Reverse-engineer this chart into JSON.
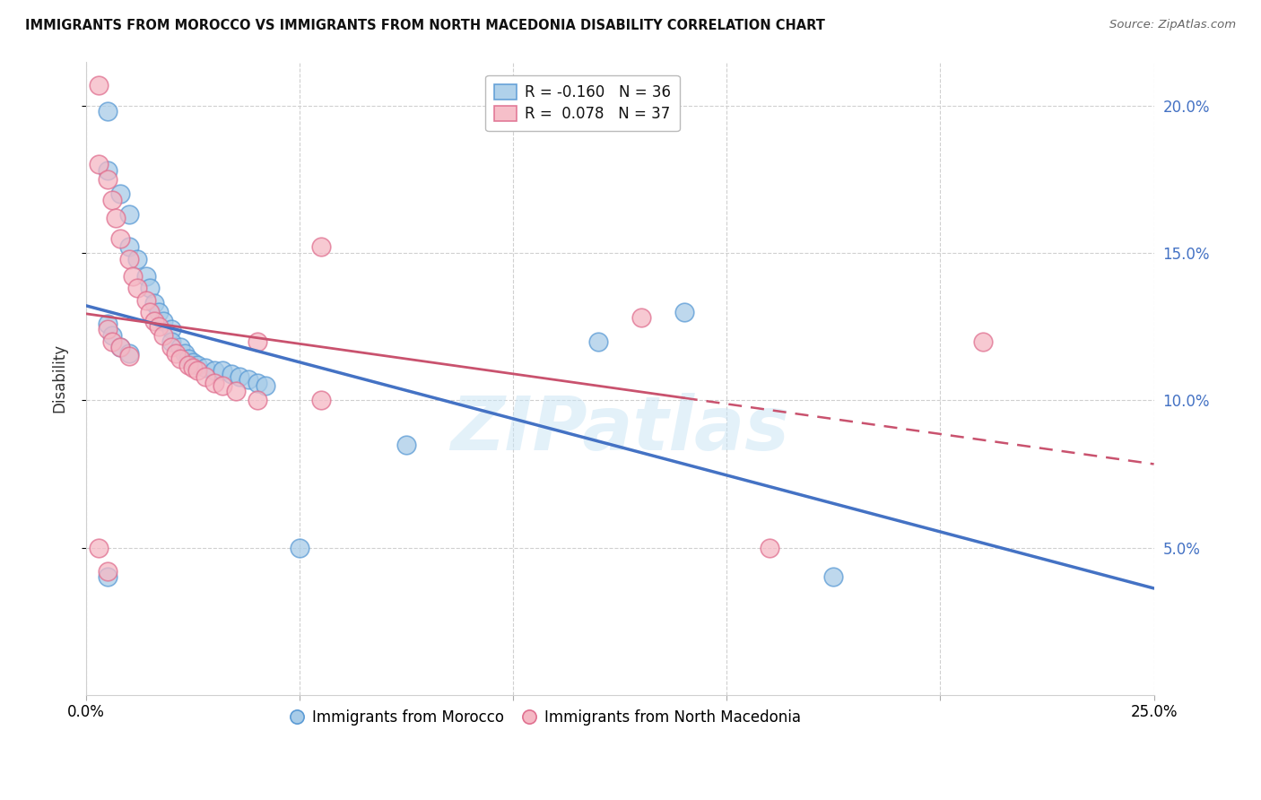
{
  "title": "IMMIGRANTS FROM MOROCCO VS IMMIGRANTS FROM NORTH MACEDONIA DISABILITY CORRELATION CHART",
  "source": "Source: ZipAtlas.com",
  "ylabel": "Disability",
  "xlim": [
    0.0,
    0.25
  ],
  "ylim": [
    0.0,
    0.215
  ],
  "yticks": [
    0.05,
    0.1,
    0.15,
    0.2
  ],
  "ytick_labels": [
    "5.0%",
    "10.0%",
    "15.0%",
    "20.0%"
  ],
  "xtick_positions": [
    0.0,
    0.05,
    0.1,
    0.15,
    0.2,
    0.25
  ],
  "xtick_labels": [
    "0.0%",
    "",
    "",
    "",
    "",
    "25.0%"
  ],
  "watermark": "ZIPatlas",
  "legend_blue_r": "R = -0.160",
  "legend_blue_n": "N = 36",
  "legend_pink_r": "R =  0.078",
  "legend_pink_n": "N = 37",
  "blue_color": "#a8cce8",
  "pink_color": "#f5b8c4",
  "blue_edge_color": "#5b9bd5",
  "pink_edge_color": "#e07090",
  "blue_line_color": "#4472c4",
  "pink_line_color": "#c9526e",
  "morocco_x": [
    0.005,
    0.005,
    0.008,
    0.01,
    0.01,
    0.012,
    0.014,
    0.015,
    0.016,
    0.017,
    0.018,
    0.02,
    0.02,
    0.022,
    0.023,
    0.024,
    0.025,
    0.026,
    0.028,
    0.03,
    0.032,
    0.034,
    0.036,
    0.038,
    0.04,
    0.042,
    0.005,
    0.006,
    0.008,
    0.01,
    0.075,
    0.12,
    0.05,
    0.175,
    0.005,
    0.14
  ],
  "morocco_y": [
    0.198,
    0.178,
    0.17,
    0.163,
    0.152,
    0.148,
    0.142,
    0.138,
    0.133,
    0.13,
    0.127,
    0.124,
    0.12,
    0.118,
    0.116,
    0.114,
    0.113,
    0.112,
    0.111,
    0.11,
    0.11,
    0.109,
    0.108,
    0.107,
    0.106,
    0.105,
    0.126,
    0.122,
    0.118,
    0.116,
    0.085,
    0.12,
    0.05,
    0.04,
    0.04,
    0.13
  ],
  "macedonia_x": [
    0.003,
    0.003,
    0.005,
    0.006,
    0.007,
    0.008,
    0.01,
    0.011,
    0.012,
    0.014,
    0.015,
    0.016,
    0.017,
    0.018,
    0.02,
    0.021,
    0.022,
    0.024,
    0.025,
    0.026,
    0.028,
    0.03,
    0.032,
    0.035,
    0.04,
    0.055,
    0.005,
    0.006,
    0.008,
    0.01,
    0.13,
    0.21,
    0.04,
    0.055,
    0.003,
    0.16,
    0.005
  ],
  "macedonia_y": [
    0.207,
    0.18,
    0.175,
    0.168,
    0.162,
    0.155,
    0.148,
    0.142,
    0.138,
    0.134,
    0.13,
    0.127,
    0.125,
    0.122,
    0.118,
    0.116,
    0.114,
    0.112,
    0.111,
    0.11,
    0.108,
    0.106,
    0.105,
    0.103,
    0.1,
    0.1,
    0.124,
    0.12,
    0.118,
    0.115,
    0.128,
    0.12,
    0.12,
    0.152,
    0.05,
    0.05,
    0.042
  ]
}
